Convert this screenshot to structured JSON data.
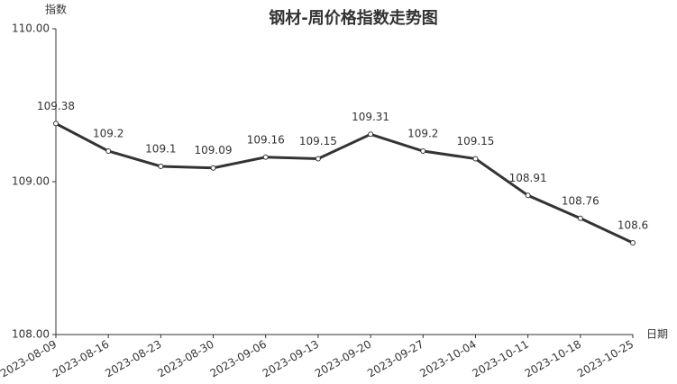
{
  "chart_data": {
    "type": "line",
    "title": "钢材-周价格指数走势图",
    "y_label": "指数",
    "x_label": "日期",
    "categories": [
      "2023-08-09",
      "2023-08-16",
      "2023-08-23",
      "2023-08-30",
      "2023-09-06",
      "2023-09-13",
      "2023-09-20",
      "2023-09-27",
      "2023-10-04",
      "2023-10-11",
      "2023-10-18",
      "2023-10-25"
    ],
    "series": [
      {
        "name": "指数",
        "color": "#333333",
        "values": [
          109.38,
          109.2,
          109.1,
          109.09,
          109.16,
          109.15,
          109.31,
          109.2,
          109.15,
          108.91,
          108.76,
          108.6
        ]
      }
    ],
    "ylim": [
      108,
      110
    ],
    "yticks": [
      {
        "value": 108,
        "label": "108.00"
      },
      {
        "value": 109,
        "label": "109.00"
      },
      {
        "value": 110,
        "label": "110.00"
      }
    ],
    "grid": false
  }
}
